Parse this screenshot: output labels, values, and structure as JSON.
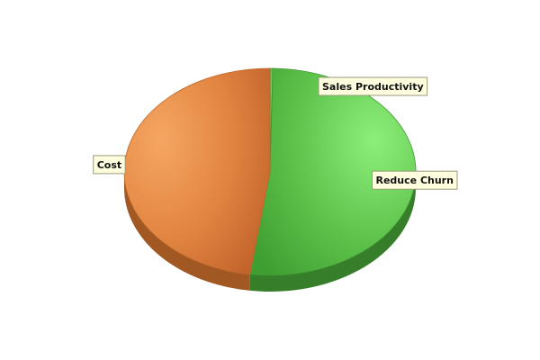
{
  "chart_data": {
    "type": "pie",
    "style": "3d",
    "legend": "none",
    "slices": [
      {
        "label": "Sales Productivity",
        "value": 0.3,
        "color": "#4caf3a"
      },
      {
        "label": "Reduce Churn",
        "value": 51.9,
        "color": "#4caf3a"
      },
      {
        "label": "Cost",
        "value": 47.8,
        "color": "#e07a30"
      }
    ]
  }
}
